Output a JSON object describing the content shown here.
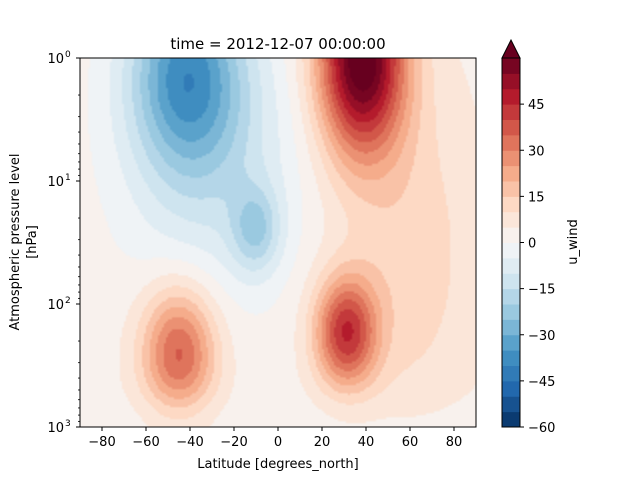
{
  "chart_data": {
    "type": "heatmap",
    "title": "time = 2012-12-07 00:00:00",
    "xlabel": "Latitude [degrees_north]",
    "ylabel_line1": "Atmospheric pressure level",
    "ylabel_line2": "[hPa]",
    "colorbar_label": "u_wind",
    "xlim": [
      -90,
      90
    ],
    "ylim": [
      1000,
      1
    ],
    "yscale": "log",
    "x_ticks": [
      -80,
      -60,
      -40,
      -20,
      0,
      20,
      40,
      60,
      80
    ],
    "x_tick_labels": [
      "−80",
      "−60",
      "−40",
      "−20",
      "0",
      "20",
      "40",
      "60",
      "80"
    ],
    "y_ticks": [
      1,
      10,
      100,
      1000
    ],
    "y_tick_labels": [
      "10",
      "10",
      "10",
      "10"
    ],
    "y_tick_exponents": [
      "0",
      "1",
      "2",
      "3"
    ],
    "colorbar_ticks": [
      -60,
      -45,
      -30,
      -15,
      0,
      15,
      30,
      45
    ],
    "colorbar_tick_labels": [
      "−60",
      "−45",
      "−30",
      "−15",
      "0",
      "15",
      "30",
      "45"
    ],
    "colorbar_range": [
      -60,
      60
    ],
    "colorbar_extend": "max",
    "colormap": "RdBu_r",
    "contour_levels": [
      -60,
      -55,
      -50,
      -45,
      -40,
      -35,
      -30,
      -25,
      -20,
      -15,
      -10,
      -5,
      0,
      5,
      10,
      15,
      20,
      25,
      30,
      35,
      40,
      45,
      50,
      55,
      60
    ],
    "colorbar_extend_color": "#67001f",
    "features": [
      {
        "kind": "jet",
        "lat": 38,
        "level_hPa": 1,
        "u_wind": 62,
        "lat_width": 14,
        "log_height": 0.55
      },
      {
        "kind": "jet",
        "lat": 31,
        "level_hPa": 170,
        "u_wind": 40,
        "lat_width": 10,
        "log_height": 0.32
      },
      {
        "kind": "jet",
        "lat": -45,
        "level_hPa": 250,
        "u_wind": 34,
        "lat_width": 12,
        "log_height": 0.38
      },
      {
        "kind": "easterly",
        "lat": -42,
        "level_hPa": 1.3,
        "u_wind": -34,
        "lat_width": 18,
        "log_height": 0.55
      },
      {
        "kind": "easterly",
        "lat": -10,
        "level_hPa": 25,
        "u_wind": -18,
        "lat_width": 8,
        "log_height": 0.25
      }
    ]
  }
}
